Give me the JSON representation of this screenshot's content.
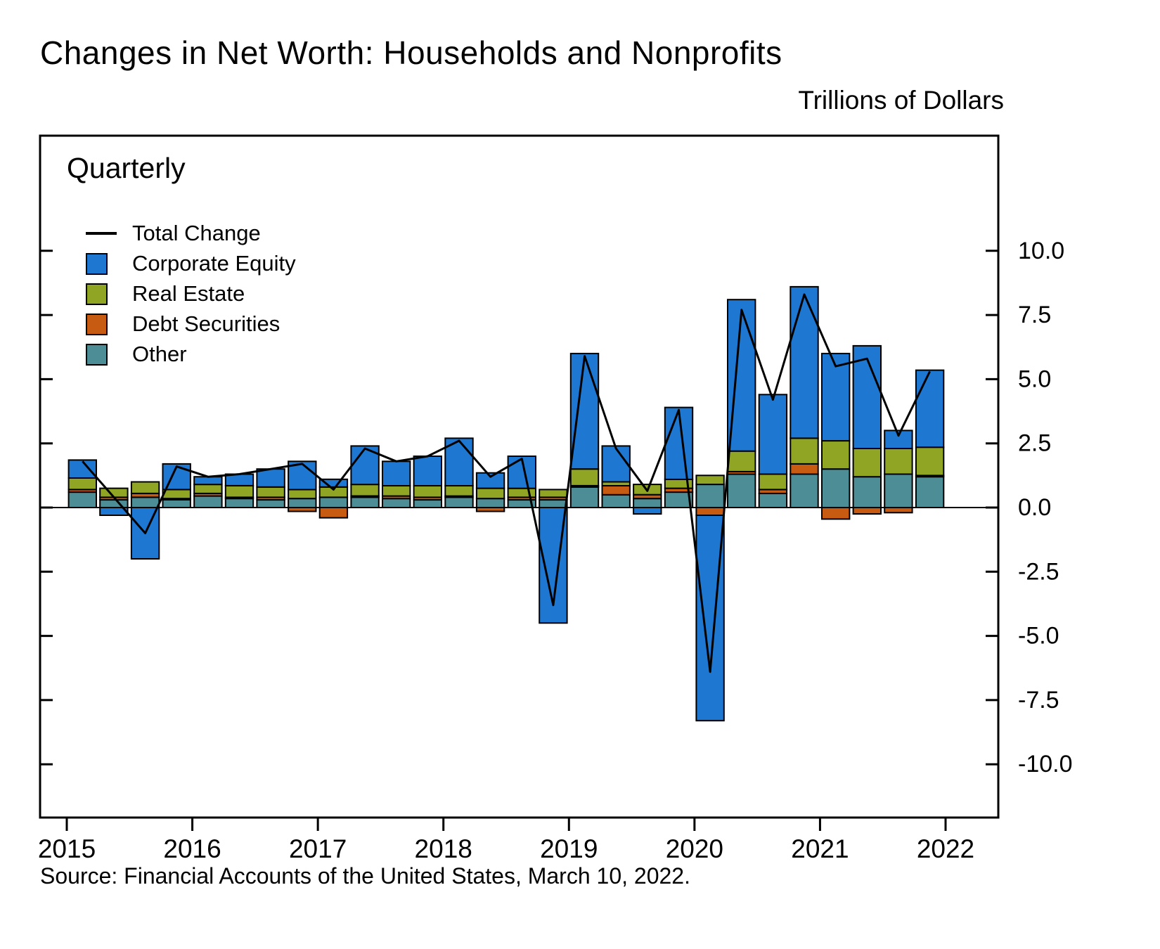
{
  "chart_data": {
    "type": "bar",
    "title": "Changes in Net Worth: Households and Nonprofits",
    "units_label": "Trillions of Dollars",
    "frequency_label": "Quarterly",
    "source": "Source: Financial Accounts of the United States, March 10, 2022.",
    "legend": [
      {
        "label": "Total Change",
        "color": "#000000",
        "type": "line"
      },
      {
        "label": "Corporate Equity",
        "color": "#1e78d2",
        "type": "box"
      },
      {
        "label": "Real Estate",
        "color": "#91a524",
        "type": "box"
      },
      {
        "label": "Debt Securities",
        "color": "#c75b12",
        "type": "box"
      },
      {
        "label": "Other",
        "color": "#4d8e96",
        "type": "box"
      }
    ],
    "x_tick_labels": [
      "2015",
      "2016",
      "2017",
      "2018",
      "2019",
      "2020",
      "2021",
      "2022"
    ],
    "y_ticks": [
      10.0,
      7.5,
      5.0,
      2.5,
      0.0,
      -2.5,
      -5.0,
      -7.5,
      -10.0
    ],
    "ylim": [
      -11.5,
      11.5
    ],
    "grid": false,
    "legend_position": "inside-top-left",
    "quarters": [
      "2015Q1",
      "2015Q2",
      "2015Q3",
      "2015Q4",
      "2016Q1",
      "2016Q2",
      "2016Q3",
      "2016Q4",
      "2017Q1",
      "2017Q2",
      "2017Q3",
      "2017Q4",
      "2018Q1",
      "2018Q2",
      "2018Q3",
      "2018Q4",
      "2019Q1",
      "2019Q2",
      "2019Q3",
      "2019Q4",
      "2020Q1",
      "2020Q2",
      "2020Q3",
      "2020Q4",
      "2021Q1",
      "2021Q2",
      "2021Q3",
      "2021Q4"
    ],
    "series": [
      {
        "name": "Other",
        "color": "#4d8e96",
        "values": [
          0.6,
          0.3,
          0.4,
          0.3,
          0.45,
          0.35,
          0.3,
          0.35,
          0.4,
          0.4,
          0.35,
          0.3,
          0.4,
          0.35,
          0.3,
          0.3,
          0.8,
          0.5,
          0.35,
          0.6,
          0.9,
          1.3,
          0.55,
          1.3,
          1.5,
          1.2,
          1.3,
          1.2
        ]
      },
      {
        "name": "Debt Securities",
        "color": "#c75b12",
        "values": [
          0.1,
          0.1,
          0.15,
          0.05,
          0.1,
          0.05,
          0.1,
          -0.15,
          -0.4,
          0.05,
          0.1,
          0.1,
          0.05,
          -0.15,
          0.1,
          0.1,
          0.05,
          0.35,
          0.15,
          0.15,
          -0.3,
          0.1,
          0.15,
          0.4,
          -0.45,
          -0.25,
          -0.2,
          0.05
        ]
      },
      {
        "name": "Real Estate",
        "color": "#91a524",
        "values": [
          0.45,
          0.35,
          0.45,
          0.35,
          0.35,
          0.45,
          0.4,
          0.35,
          0.4,
          0.45,
          0.4,
          0.45,
          0.4,
          0.4,
          0.35,
          0.3,
          0.65,
          0.15,
          0.4,
          0.35,
          0.35,
          0.8,
          0.6,
          1.0,
          1.1,
          1.1,
          1.0,
          1.1
        ]
      },
      {
        "name": "Corporate Equity",
        "color": "#1e78d2",
        "values": [
          0.7,
          -0.3,
          -2.0,
          1.0,
          0.3,
          0.45,
          0.7,
          1.1,
          0.3,
          1.5,
          0.95,
          1.15,
          1.85,
          0.6,
          1.25,
          -4.5,
          4.5,
          1.4,
          -0.25,
          2.8,
          -8.0,
          5.9,
          3.1,
          5.9,
          3.4,
          4.0,
          0.7,
          3.0
        ]
      }
    ],
    "total_change": {
      "name": "Total Change",
      "color": "#000000",
      "values": [
        1.8,
        0.4,
        -1.0,
        1.6,
        1.2,
        1.3,
        1.5,
        1.7,
        0.7,
        2.3,
        1.8,
        2.0,
        2.6,
        1.2,
        1.9,
        -3.8,
        5.9,
        2.3,
        0.65,
        3.8,
        -6.4,
        7.7,
        4.2,
        8.3,
        5.5,
        5.8,
        2.8,
        5.3
      ]
    }
  }
}
